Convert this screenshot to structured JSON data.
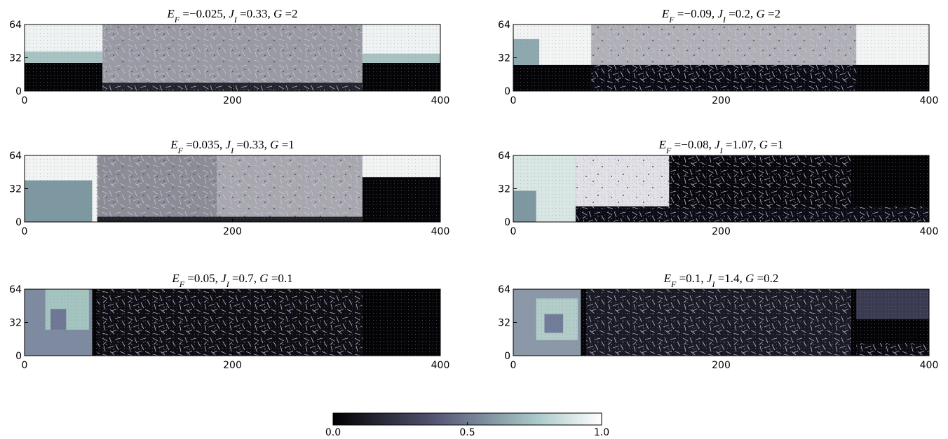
{
  "chart_data": [
    {
      "type": "heatmap",
      "title": [
        {
          "text": "E",
          "italic": true
        },
        {
          "text": "F",
          "italic": true,
          "sub": true
        },
        {
          "text": " =−0.025, "
        },
        {
          "text": "J",
          "italic": true
        },
        {
          "text": "I",
          "italic": true,
          "sub": true
        },
        {
          "text": " =0.33, "
        },
        {
          "text": "G",
          "italic": true
        },
        {
          "text": " =2"
        }
      ],
      "xlim": [
        0,
        400
      ],
      "ylim": [
        0,
        64
      ],
      "xticks": [
        0,
        200,
        400
      ],
      "yticks": [
        0,
        32,
        64
      ]
    },
    {
      "type": "heatmap",
      "title": [
        {
          "text": "E",
          "italic": true
        },
        {
          "text": "F",
          "italic": true,
          "sub": true
        },
        {
          "text": " =−0.09, "
        },
        {
          "text": "J",
          "italic": true
        },
        {
          "text": "I",
          "italic": true,
          "sub": true
        },
        {
          "text": " =0.2, "
        },
        {
          "text": "G",
          "italic": true
        },
        {
          "text": " =2"
        }
      ],
      "xlim": [
        0,
        400
      ],
      "ylim": [
        0,
        64
      ],
      "xticks": [
        0,
        200,
        400
      ],
      "yticks": [
        0,
        32,
        64
      ]
    },
    {
      "type": "heatmap",
      "title": [
        {
          "text": "E",
          "italic": true
        },
        {
          "text": "F",
          "italic": true,
          "sub": true
        },
        {
          "text": " =0.035, "
        },
        {
          "text": "J",
          "italic": true
        },
        {
          "text": "I",
          "italic": true,
          "sub": true
        },
        {
          "text": " =0.33, "
        },
        {
          "text": "G",
          "italic": true
        },
        {
          "text": " =1"
        }
      ],
      "xlim": [
        0,
        400
      ],
      "ylim": [
        0,
        64
      ],
      "xticks": [
        0,
        200,
        400
      ],
      "yticks": [
        0,
        32,
        64
      ]
    },
    {
      "type": "heatmap",
      "title": [
        {
          "text": "E",
          "italic": true
        },
        {
          "text": "F",
          "italic": true,
          "sub": true
        },
        {
          "text": " =−0.08, "
        },
        {
          "text": "J",
          "italic": true
        },
        {
          "text": "I",
          "italic": true,
          "sub": true
        },
        {
          "text": " =1.07, "
        },
        {
          "text": "G",
          "italic": true
        },
        {
          "text": " =1"
        }
      ],
      "xlim": [
        0,
        400
      ],
      "ylim": [
        0,
        64
      ],
      "xticks": [
        0,
        200,
        400
      ],
      "yticks": [
        0,
        32,
        64
      ]
    },
    {
      "type": "heatmap",
      "title": [
        {
          "text": "E",
          "italic": true
        },
        {
          "text": "F",
          "italic": true,
          "sub": true
        },
        {
          "text": " =0.05, "
        },
        {
          "text": "J",
          "italic": true
        },
        {
          "text": "I",
          "italic": true,
          "sub": true
        },
        {
          "text": " =0.7, "
        },
        {
          "text": "G",
          "italic": true
        },
        {
          "text": " =0.1"
        }
      ],
      "xlim": [
        0,
        400
      ],
      "ylim": [
        0,
        64
      ],
      "xticks": [
        0,
        200,
        400
      ],
      "yticks": [
        0,
        32,
        64
      ]
    },
    {
      "type": "heatmap",
      "title": [
        {
          "text": "E",
          "italic": true
        },
        {
          "text": "F",
          "italic": true,
          "sub": true
        },
        {
          "text": " =0.1, "
        },
        {
          "text": "J",
          "italic": true
        },
        {
          "text": "I",
          "italic": true,
          "sub": true
        },
        {
          "text": " =1.4, "
        },
        {
          "text": "G",
          "italic": true
        },
        {
          "text": " =0.2"
        }
      ],
      "xlim": [
        0,
        400
      ],
      "ylim": [
        0,
        64
      ],
      "xticks": [
        0,
        200,
        400
      ],
      "yticks": [
        0,
        32,
        64
      ]
    },
    {
      "type": "colorbar",
      "colormap": "bone",
      "xlim": [
        0,
        1
      ],
      "xticks": [
        {
          "value": 0,
          "label": "0.0"
        },
        {
          "value": 0.5,
          "label": "0.5"
        },
        {
          "value": 1,
          "label": "1.0"
        }
      ]
    }
  ]
}
